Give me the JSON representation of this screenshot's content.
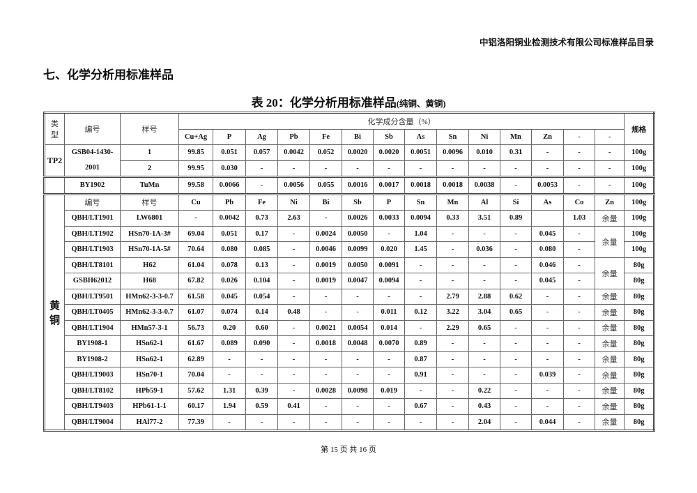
{
  "header": {
    "company": "中铝洛阳铜业检测技术有限公司标准样品目录"
  },
  "section_title": "七、化学分析用标准样品",
  "table_title": {
    "main": "表 20：化学分析用标准样品",
    "sub": "(纯铜、黄铜)"
  },
  "table": {
    "head": {
      "type": "类\n型",
      "code": "编号",
      "sample": "样号",
      "group": "化学成分含量（%）",
      "spec": "规格",
      "elements": [
        "Cu+Ag",
        "P",
        "Ag",
        "Pb",
        "Fe",
        "Bi",
        "Sb",
        "As",
        "Sn",
        "Ni",
        "Mn",
        "Zn",
        "-",
        "-"
      ]
    },
    "tp2": {
      "type": "TP2",
      "code": "GSB04-1430-2001",
      "rows": [
        {
          "sample": "1",
          "values": [
            "99.85",
            "0.051",
            "0.057",
            "0.0042",
            "0.052",
            "0.0020",
            "0.0020",
            "0.0051",
            "0.0096",
            "0.010",
            "0.31",
            "-",
            "-",
            "-"
          ],
          "spec": "100g"
        },
        {
          "sample": "2",
          "values": [
            "99.95",
            "0.030",
            "-",
            "-",
            "-",
            "-",
            "-",
            "-",
            "-",
            "-",
            "-",
            "-",
            "-",
            "-"
          ],
          "spec": "100g"
        }
      ]
    },
    "tumn": {
      "type": "",
      "code": "BY1902",
      "sample": "TuMn",
      "values": [
        "99.58",
        "0.0066",
        "-",
        "0.0056",
        "0.055",
        "0.0016",
        "0.0017",
        "0.0018",
        "0.0018",
        "0.0038",
        "-",
        "0.0053",
        "-",
        "-"
      ],
      "spec": "100g"
    },
    "brass": {
      "type": "黄\n铜",
      "head": {
        "code": "编号",
        "sample": "样号",
        "elements": [
          "Cu",
          "Pb",
          "Fe",
          "Ni",
          "Bi",
          "Sb",
          "P",
          "Sn",
          "Mn",
          "Al",
          "Si",
          "As",
          "Co",
          "Zn"
        ],
        "spec": "100g"
      },
      "balance": "余量",
      "rows": [
        {
          "code": "QBH/LT1901",
          "sample": "LW6801",
          "values": [
            "-",
            "0.0042",
            "0.73",
            "2.63",
            "-",
            "0.0026",
            "0.0033",
            "0.0094",
            "0.33",
            "3.51",
            "0.89",
            "",
            "1.03"
          ],
          "zn": "余量",
          "spec": "100g"
        },
        {
          "code": "QBH/LT1902",
          "sample": "HSn70-1A-3#",
          "values": [
            "69.04",
            "0.051",
            "0.17",
            "-",
            "0.0024",
            "0.0050",
            "-",
            "1.04",
            "-",
            "-",
            "-",
            "0.045",
            "-"
          ],
          "zn_span": 2,
          "spec": "100g"
        },
        {
          "code": "QBH/LT1903",
          "sample": "HSn70-1A-5#",
          "values": [
            "70.64",
            "0.080",
            "0.085",
            "-",
            "0.0046",
            "0.0099",
            "0.020",
            "1.45",
            "-",
            "0.036",
            "-",
            "0.080",
            "-"
          ],
          "spec": "100g"
        },
        {
          "code": "QBH/LT8101",
          "sample": "H62",
          "values": [
            "61.04",
            "0.078",
            "0.13",
            "-",
            "0.0019",
            "0.0050",
            "0.0091",
            "-",
            "-",
            "-",
            "-",
            "0.046",
            "-"
          ],
          "zn_span": 2,
          "spec": "80g"
        },
        {
          "code": "GSBH62012",
          "sample": "H68",
          "values": [
            "67.82",
            "0.026",
            "0.104",
            "-",
            "0.0019",
            "0.0047",
            "0.0094",
            "-",
            "-",
            "-",
            "-",
            "0.045",
            "-"
          ],
          "spec": "80g"
        },
        {
          "code": "QBH/LT9501",
          "sample": "HMn62-3-3-0.7",
          "values": [
            "61.58",
            "0.045",
            "0.054",
            "-",
            "-",
            "-",
            "-",
            "-",
            "2.79",
            "2.88",
            "0.62",
            "-",
            "-"
          ],
          "zn": "余量",
          "spec": "80g"
        },
        {
          "code": "QBH/LT0405",
          "sample": "HMn62-3-3-0.7",
          "values": [
            "61.07",
            "0.074",
            "0.14",
            "0.48",
            "-",
            "-",
            "0.011",
            "0.12",
            "3.22",
            "3.04",
            "0.65",
            "-",
            "-"
          ],
          "zn": "余量",
          "spec": "80g"
        },
        {
          "code": "QBH/LT1904",
          "sample": "HMn57-3-1",
          "values": [
            "56.73",
            "0.20",
            "0.60",
            "-",
            "0.0021",
            "0.0054",
            "0.014",
            "-",
            "2.29",
            "0.65",
            "-",
            "-",
            "-"
          ],
          "zn": "余量",
          "spec": "80g"
        },
        {
          "code": "BY1908-1",
          "sample": "HSn62-1",
          "values": [
            "61.67",
            "0.089",
            "0.090",
            "-",
            "0.0018",
            "0.0048",
            "0.0070",
            "0.89",
            "-",
            "-",
            "-",
            "-",
            "-"
          ],
          "zn": "余量",
          "spec": "80g"
        },
        {
          "code": "BY1908-2",
          "sample": "HSn62-1",
          "values": [
            "62.89",
            "-",
            "-",
            "-",
            "-",
            "-",
            "-",
            "0.87",
            "-",
            "-",
            "-",
            "-",
            "-"
          ],
          "zn": "余量",
          "spec": "80g"
        },
        {
          "code": "QBH/LT9003",
          "sample": "HSn70-1",
          "values": [
            "70.04",
            "-",
            "-",
            "-",
            "-",
            "-",
            "-",
            "0.91",
            "-",
            "-",
            "-",
            "0.039",
            "-"
          ],
          "zn": "余量",
          "spec": "80g"
        },
        {
          "code": "QBH/LT8102",
          "sample": "HPb59-1",
          "values": [
            "57.62",
            "1.31",
            "0.39",
            "-",
            "0.0028",
            "0.0098",
            "0.019",
            "-",
            "-",
            "0.22",
            "-",
            "-",
            "-"
          ],
          "zn": "余量",
          "spec": "80g"
        },
        {
          "code": "QBH/LT9403",
          "sample": "HPb61-1-1",
          "values": [
            "60.17",
            "1.94",
            "0.59",
            "0.41",
            "-",
            "-",
            "-",
            "0.67",
            "-",
            "0.43",
            "-",
            "-",
            "-"
          ],
          "zn": "余量",
          "spec": "80g"
        },
        {
          "code": "QBH/LT9004",
          "sample": "HAl77-2",
          "values": [
            "77.39",
            "-",
            "-",
            "-",
            "-",
            "-",
            "-",
            "-",
            "-",
            "2.04",
            "-",
            "0.044",
            "-"
          ],
          "zn": "余量",
          "spec": "80g"
        }
      ]
    }
  },
  "footer": {
    "page": "第 15 页 共 16 页"
  }
}
